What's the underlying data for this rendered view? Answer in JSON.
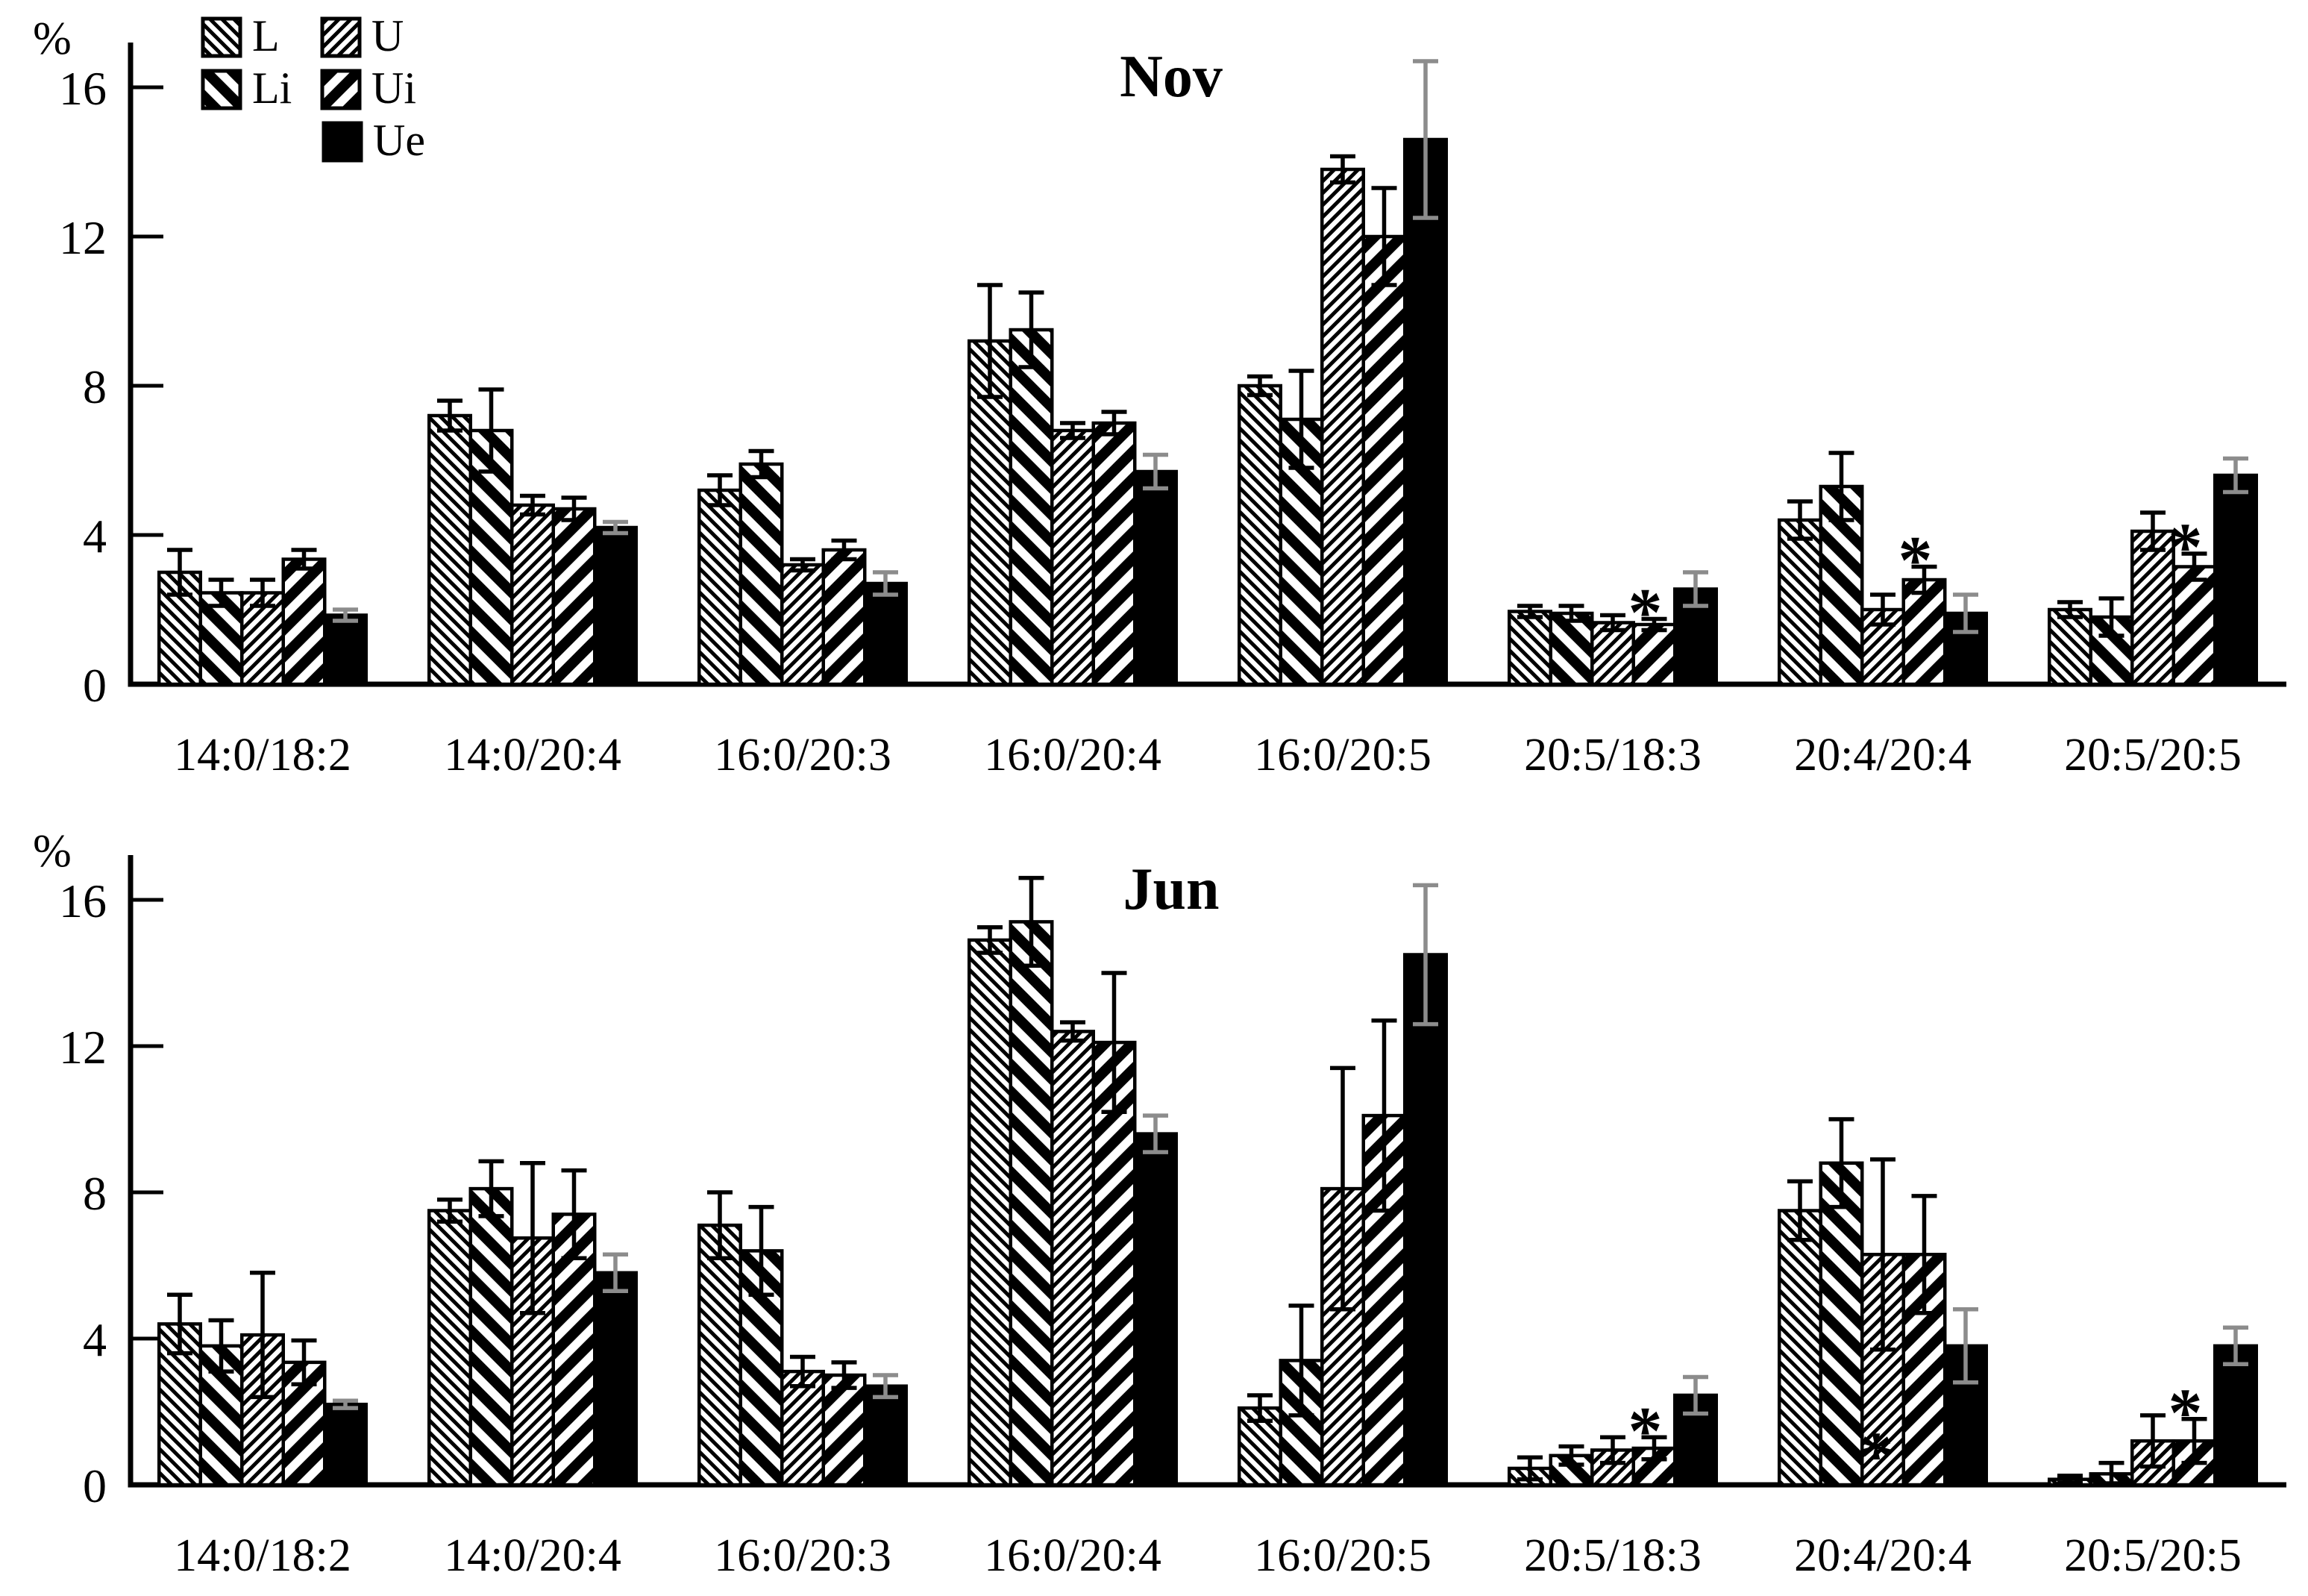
{
  "figure_colors": {
    "background": "#ffffff",
    "ink": "#000000",
    "ue_error_gray": "#8c8c8c"
  },
  "legend": {
    "items": [
      {
        "label": "L",
        "pattern": "thin-backslash-hatch"
      },
      {
        "label": "Li",
        "pattern": "thick-backslash-hatch"
      },
      {
        "label": "U",
        "pattern": "thin-forwardslash-hatch"
      },
      {
        "label": "Ui",
        "pattern": "thick-forwardslash-hatch"
      },
      {
        "label": "Ue",
        "pattern": "solid-black"
      }
    ]
  },
  "chart_data": [
    {
      "type": "bar",
      "title": "Nov",
      "ylabel": "%",
      "yticks": [
        0,
        4,
        8,
        12,
        16
      ],
      "ylim": [
        0,
        17.2
      ],
      "grid": false,
      "legend_position": "top-left-inside",
      "categories": [
        "14:0/18:2",
        "14:0/20:4",
        "16:0/20:3",
        "16:0/20:4",
        "16:0/20:5",
        "20:5/18:3",
        "20:4/20:4",
        "20:5/20:5"
      ],
      "series": [
        {
          "name": "L",
          "pattern": "thin-backslash-hatch",
          "error_color": "#000000",
          "values": [
            3.0,
            7.2,
            5.2,
            9.2,
            8.0,
            1.95,
            4.4,
            2.0
          ],
          "errors": [
            0.6,
            0.4,
            0.4,
            1.5,
            0.25,
            0.15,
            0.5,
            0.2
          ]
        },
        {
          "name": "Li",
          "pattern": "thick-backslash-hatch",
          "error_color": "#000000",
          "values": [
            2.45,
            6.8,
            5.9,
            9.5,
            7.1,
            1.9,
            5.3,
            1.8
          ],
          "errors": [
            0.35,
            1.1,
            0.35,
            1.0,
            1.3,
            0.2,
            0.9,
            0.5
          ]
        },
        {
          "name": "U",
          "pattern": "thin-forwardslash-hatch",
          "error_color": "#000000",
          "values": [
            2.45,
            4.8,
            3.2,
            6.8,
            13.8,
            1.65,
            2.0,
            4.1
          ],
          "errors": [
            0.35,
            0.25,
            0.15,
            0.2,
            0.35,
            0.2,
            0.4,
            0.5
          ]
        },
        {
          "name": "Ui",
          "pattern": "thick-forwardslash-hatch",
          "error_color": "#000000",
          "values": [
            3.35,
            4.7,
            3.6,
            7.0,
            12.0,
            1.6,
            2.8,
            3.15
          ],
          "errors": [
            0.25,
            0.3,
            0.25,
            0.3,
            1.3,
            0.15,
            0.35,
            0.35
          ]
        },
        {
          "name": "Ue",
          "pattern": "solid-black",
          "error_color": "#8c8c8c",
          "values": [
            1.85,
            4.2,
            2.7,
            5.7,
            14.6,
            2.55,
            1.9,
            5.6
          ],
          "errors": [
            0.15,
            0.15,
            0.3,
            0.45,
            2.1,
            0.45,
            0.5,
            0.45
          ]
        }
      ],
      "annotations": [
        {
          "category": "20:5/18:3",
          "series": "Ui",
          "symbol": "*",
          "color": "#000000",
          "position": "above"
        },
        {
          "category": "20:4/20:4",
          "series": "Ui",
          "symbol": "*",
          "color": "#000000",
          "position": "above"
        },
        {
          "category": "20:5/20:5",
          "series": "Ui",
          "symbol": "*",
          "color": "#000000",
          "position": "above"
        }
      ]
    },
    {
      "type": "bar",
      "title": "Jun",
      "ylabel": "%",
      "yticks": [
        0,
        4,
        8,
        12,
        16
      ],
      "ylim": [
        0,
        17.2
      ],
      "grid": false,
      "legend_position": "none",
      "categories": [
        "14:0/18:2",
        "14:0/20:4",
        "16:0/20:3",
        "16:0/20:4",
        "16:0/20:5",
        "20:5/18:3",
        "20:4/20:4",
        "20:5/20:5"
      ],
      "series": [
        {
          "name": "L",
          "pattern": "thin-backslash-hatch",
          "error_color": "#000000",
          "values": [
            4.4,
            7.5,
            7.1,
            14.9,
            2.1,
            0.45,
            7.5,
            0.15
          ],
          "errors": [
            0.8,
            0.3,
            0.9,
            0.35,
            0.35,
            0.3,
            0.8,
            0.1
          ]
        },
        {
          "name": "Li",
          "pattern": "thick-backslash-hatch",
          "error_color": "#000000",
          "values": [
            3.8,
            8.1,
            6.4,
            15.4,
            3.4,
            0.8,
            8.8,
            0.3
          ],
          "errors": [
            0.7,
            0.75,
            1.2,
            1.2,
            1.5,
            0.25,
            1.2,
            0.3
          ]
        },
        {
          "name": "U",
          "pattern": "thin-forwardslash-hatch",
          "error_color": "#000000",
          "values": [
            4.1,
            6.75,
            3.1,
            12.4,
            8.1,
            0.95,
            6.3,
            1.2
          ],
          "errors": [
            1.7,
            2.05,
            0.4,
            0.25,
            3.3,
            0.35,
            2.6,
            0.7
          ]
        },
        {
          "name": "Ui",
          "pattern": "thick-forwardslash-hatch",
          "error_color": "#000000",
          "values": [
            3.35,
            7.4,
            3.0,
            12.1,
            10.1,
            1.0,
            6.3,
            1.2
          ],
          "errors": [
            0.6,
            1.2,
            0.35,
            1.9,
            2.6,
            0.3,
            1.6,
            0.6
          ]
        },
        {
          "name": "Ue",
          "pattern": "solid-black",
          "error_color": "#8c8c8c",
          "values": [
            2.2,
            5.8,
            2.7,
            9.6,
            14.5,
            2.45,
            3.8,
            3.8
          ],
          "errors": [
            0.1,
            0.5,
            0.3,
            0.5,
            1.9,
            0.5,
            1.0,
            0.5
          ]
        }
      ],
      "annotations": [
        {
          "category": "20:5/18:3",
          "series": "Ui",
          "symbol": "*",
          "color": "#000000",
          "position": "above"
        },
        {
          "category": "20:5/20:5",
          "series": "Ui",
          "symbol": "*",
          "color": "#000000",
          "position": "above"
        },
        {
          "category": "20:4/20:4",
          "series": "U",
          "symbol": "*",
          "color": "#8a8a8a",
          "position": "bottom",
          "dx": -9
        }
      ]
    }
  ]
}
